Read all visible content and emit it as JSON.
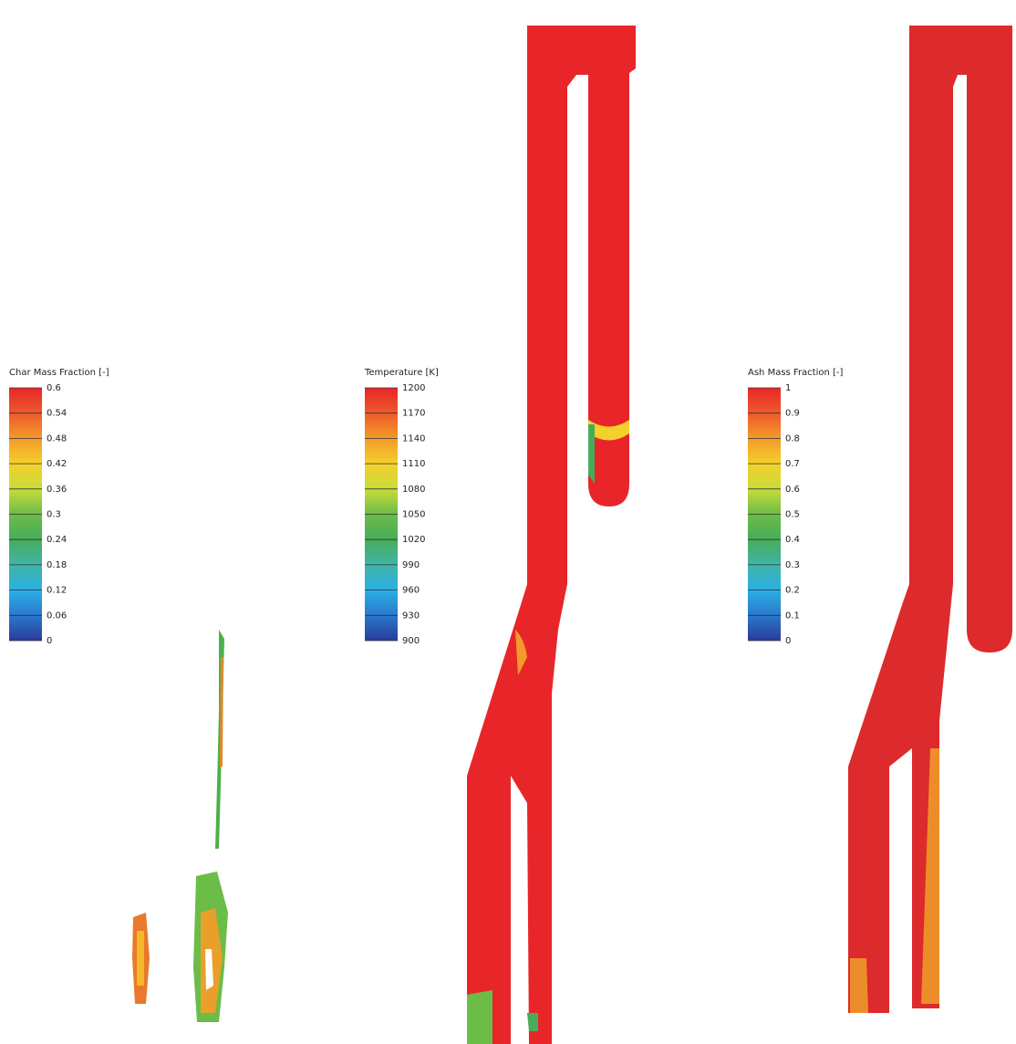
{
  "panels": [
    {
      "legend": {
        "title": "Char Mass Fraction [-]",
        "ticks": [
          "0.6",
          "0.54",
          "0.48",
          "0.42",
          "0.36",
          "0.3",
          "0.24",
          "0.18",
          "0.12",
          "0.06",
          "0"
        ]
      }
    },
    {
      "legend": {
        "title": "Temperature [K]",
        "ticks": [
          "1200",
          "1170",
          "1140",
          "1110",
          "1080",
          "1050",
          "1020",
          "990",
          "960",
          "930",
          "900"
        ]
      }
    },
    {
      "legend": {
        "title": "Ash Mass Fraction [-]",
        "ticks": [
          "1",
          "0.9",
          "0.8",
          "0.7",
          "0.6",
          "0.5",
          "0.4",
          "0.3",
          "0.2",
          "0.1",
          "0"
        ]
      }
    }
  ]
}
